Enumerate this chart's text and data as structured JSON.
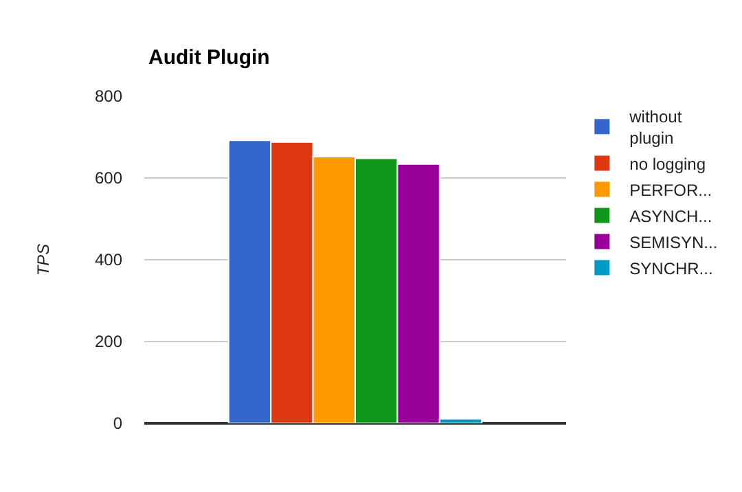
{
  "chart_data": {
    "type": "bar",
    "title": "Audit Plugin",
    "ylabel": "TPS",
    "categories": [
      null
    ],
    "ylim": [
      0,
      800
    ],
    "yticks": [
      0,
      200,
      400,
      600,
      800
    ],
    "grid": "y",
    "legend": "right",
    "series": [
      {
        "name": "without plugin",
        "color": "#3366cc",
        "values": [
          692
        ]
      },
      {
        "name": "no logging",
        "color": "#dc3912",
        "values": [
          688
        ]
      },
      {
        "name": "PERFOR...",
        "color": "#ff9900",
        "values": [
          652
        ]
      },
      {
        "name": "ASYNCH...",
        "color": "#109618",
        "values": [
          648
        ]
      },
      {
        "name": "SEMISYN...",
        "color": "#990099",
        "values": [
          634
        ]
      },
      {
        "name": "SYNCHR...",
        "color": "#0099c6",
        "values": [
          11
        ]
      }
    ]
  }
}
